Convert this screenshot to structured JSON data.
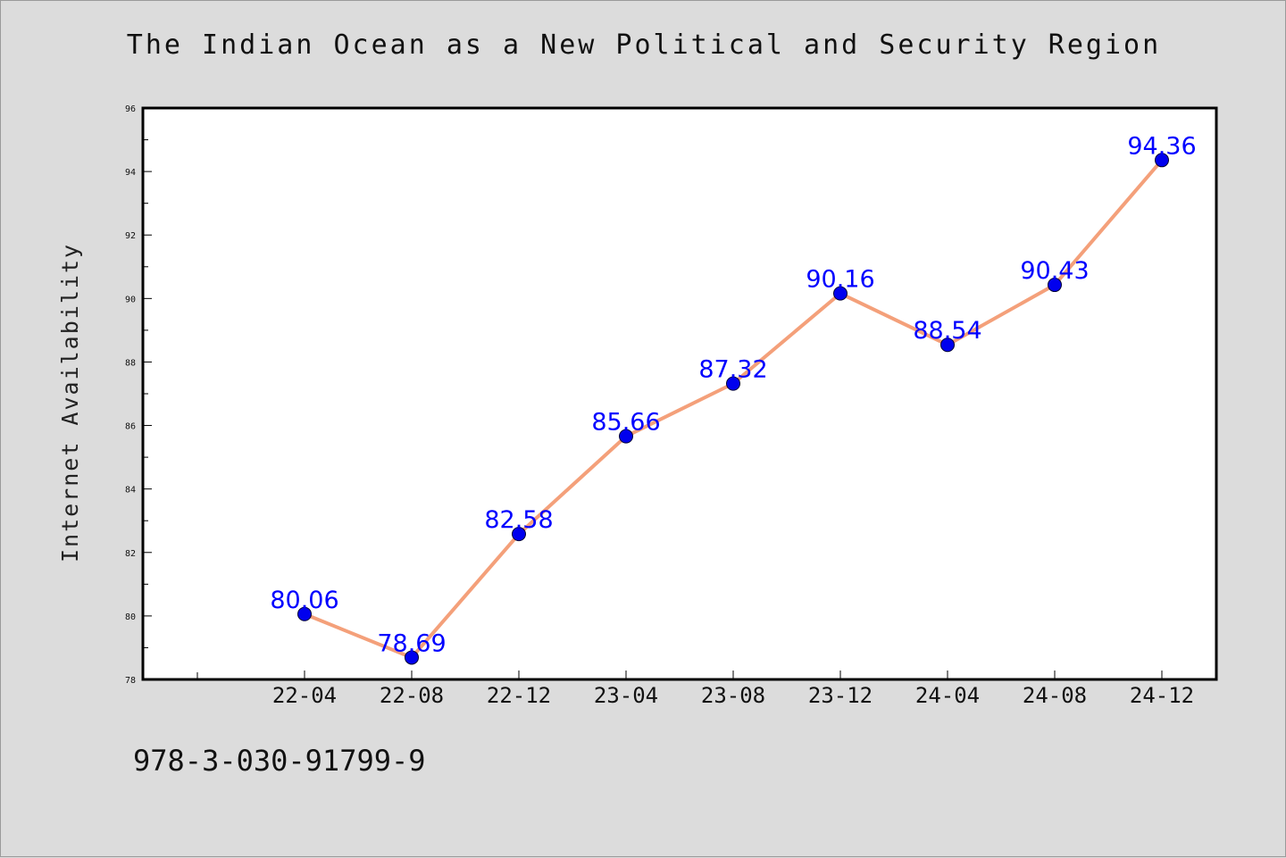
{
  "chart_data": {
    "type": "line",
    "title": "The Indian Ocean as a New Political and Security Region",
    "xlabel": "",
    "ylabel": "Internet Availability",
    "categories": [
      "22-04",
      "22-08",
      "22-12",
      "23-04",
      "23-08",
      "23-12",
      "24-04",
      "24-08",
      "24-12"
    ],
    "series": [
      {
        "values": [
          80.06,
          78.69,
          82.58,
          85.66,
          87.32,
          90.16,
          88.54,
          90.43,
          94.36
        ]
      }
    ],
    "ylim": [
      78,
      96
    ],
    "yticks": [
      78,
      80,
      82,
      84,
      86,
      88,
      90,
      92,
      94,
      96
    ],
    "grid": false,
    "data_labels": true,
    "colors": {
      "line": "#f4a07a",
      "marker": "#0000ee",
      "label": "#0000ff"
    }
  },
  "caption": "978-3-030-91799-9"
}
